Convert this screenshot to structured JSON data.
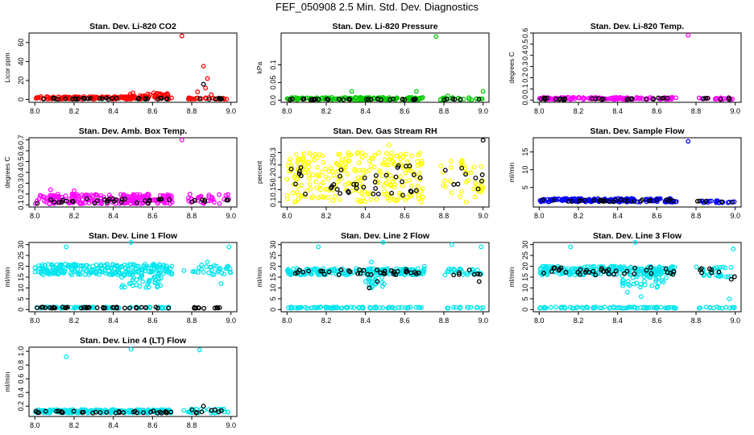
{
  "title": "FEF_050908  2.5 Min. Std. Dev. Diagnostics",
  "chart_data": [
    {
      "type": "scatter",
      "title": "Stan. Dev. Li-820 CO2",
      "ylabel": "Licor ppm",
      "xlim": [
        7.97,
        9.03
      ],
      "ylim": [
        -3,
        70
      ],
      "xticks": [
        8.0,
        8.2,
        8.4,
        8.6,
        8.8,
        9.0
      ],
      "yticks": [
        0,
        20,
        40,
        60
      ],
      "series": [
        {
          "name": "all",
          "color": "#ff0000",
          "bands": [
            {
              "x0": 8.0,
              "x1": 8.7,
              "y0": 0.2,
              "y1": 3,
              "n": 150
            },
            {
              "x0": 8.48,
              "x1": 8.68,
              "y0": 3,
              "y1": 7,
              "n": 25
            },
            {
              "x0": 8.78,
              "x1": 9.0,
              "y0": 0.2,
              "y1": 2,
              "n": 24
            }
          ],
          "points": [
            [
              8.75,
              67
            ],
            [
              8.86,
              35
            ],
            [
              8.88,
              22
            ],
            [
              8.87,
              12
            ],
            [
              8.9,
              5
            ],
            [
              8.83,
              8
            ]
          ]
        },
        {
          "name": "hourly",
          "color": "#000000",
          "bands": [
            {
              "x0": 8.0,
              "x1": 8.7,
              "y0": 0.2,
              "y1": 1.5,
              "n": 32
            },
            {
              "x0": 8.8,
              "x1": 9.0,
              "y0": 0.2,
              "y1": 1.5,
              "n": 8
            }
          ],
          "points": [
            [
              8.86,
              16
            ]
          ]
        }
      ]
    },
    {
      "type": "scatter",
      "title": "Stan. Dev. Li-820 Pressure",
      "ylabel": "kPa",
      "xlim": [
        7.97,
        9.03
      ],
      "ylim": [
        -0.006,
        0.19
      ],
      "xticks": [
        8.0,
        8.2,
        8.4,
        8.6,
        8.8,
        9.0
      ],
      "yticks": [
        0.0,
        0.05,
        0.1
      ],
      "series": [
        {
          "name": "all",
          "color": "#00cc00",
          "bands": [
            {
              "x0": 8.0,
              "x1": 8.7,
              "y0": 0.001,
              "y1": 0.008,
              "n": 150
            },
            {
              "x0": 8.78,
              "x1": 9.0,
              "y0": 0.001,
              "y1": 0.008,
              "n": 24
            }
          ],
          "points": [
            [
              8.76,
              0.18
            ],
            [
              8.33,
              0.025
            ],
            [
              8.66,
              0.025
            ],
            [
              9.0,
              0.025
            ],
            [
              8.82,
              0.012
            ]
          ]
        },
        {
          "name": "hourly",
          "color": "#000000",
          "bands": [
            {
              "x0": 8.0,
              "x1": 8.7,
              "y0": 0.001,
              "y1": 0.004,
              "n": 30
            },
            {
              "x0": 8.8,
              "x1": 9.0,
              "y0": 0.001,
              "y1": 0.004,
              "n": 6
            }
          ],
          "points": []
        }
      ]
    },
    {
      "type": "scatter",
      "title": "Stan. Dev. Li-820 Temp.",
      "ylabel": "degrees C",
      "xlim": [
        7.97,
        9.03
      ],
      "ylim": [
        -0.02,
        0.6
      ],
      "xticks": [
        8.0,
        8.2,
        8.4,
        8.6,
        8.8,
        9.0
      ],
      "yticks": [
        0.0,
        0.1,
        0.2,
        0.3,
        0.4,
        0.5,
        0.6
      ],
      "series": [
        {
          "name": "all",
          "color": "#ff00ff",
          "bands": [
            {
              "x0": 8.0,
              "x1": 8.7,
              "y0": 0.005,
              "y1": 0.025,
              "n": 140
            },
            {
              "x0": 8.8,
              "x1": 9.0,
              "y0": 0.005,
              "y1": 0.02,
              "n": 20
            }
          ],
          "points": [
            [
              8.76,
              0.58
            ]
          ]
        },
        {
          "name": "hourly",
          "color": "#000000",
          "bands": [
            {
              "x0": 8.0,
              "x1": 8.7,
              "y0": 0.005,
              "y1": 0.02,
              "n": 30
            },
            {
              "x0": 8.8,
              "x1": 9.0,
              "y0": 0.005,
              "y1": 0.02,
              "n": 6
            }
          ],
          "points": []
        }
      ]
    },
    {
      "type": "scatter",
      "title": "Stan. Dev. Amb. Box Temp.",
      "ylabel": "degrees C",
      "xlim": [
        7.97,
        9.03
      ],
      "ylim": [
        0.08,
        0.72
      ],
      "xticks": [
        8.0,
        8.2,
        8.4,
        8.6,
        8.8,
        9.0
      ],
      "yticks": [
        0.1,
        0.2,
        0.3,
        0.4,
        0.5,
        0.6,
        0.7
      ],
      "series": [
        {
          "name": "all",
          "color": "#ff00ff",
          "bands": [
            {
              "x0": 8.0,
              "x1": 8.7,
              "y0": 0.11,
              "y1": 0.2,
              "n": 220
            },
            {
              "x0": 8.78,
              "x1": 9.0,
              "y0": 0.11,
              "y1": 0.2,
              "n": 30
            }
          ],
          "points": [
            [
              8.75,
              0.7
            ],
            [
              8.08,
              0.24
            ],
            [
              8.2,
              0.23
            ]
          ]
        },
        {
          "name": "hourly",
          "color": "#000000",
          "bands": [
            {
              "x0": 8.0,
              "x1": 8.7,
              "y0": 0.11,
              "y1": 0.16,
              "n": 32
            },
            {
              "x0": 8.8,
              "x1": 9.0,
              "y0": 0.11,
              "y1": 0.15,
              "n": 7
            }
          ],
          "points": []
        }
      ]
    },
    {
      "type": "scatter",
      "title": "Stan. Dev. Gas Stream RH",
      "ylabel": "percent",
      "xlim": [
        7.97,
        9.03
      ],
      "ylim": [
        0.08,
        0.36
      ],
      "xticks": [
        8.0,
        8.2,
        8.4,
        8.6,
        8.8,
        9.0
      ],
      "yticks": [
        0.1,
        0.15,
        0.2,
        0.25,
        0.3
      ],
      "series": [
        {
          "name": "all",
          "color": "#ffff00",
          "bands": [
            {
              "x0": 8.0,
              "x1": 8.7,
              "y0": 0.1,
              "y1": 0.3,
              "n": 260
            },
            {
              "x0": 8.78,
              "x1": 9.0,
              "y0": 0.1,
              "y1": 0.27,
              "n": 40
            }
          ],
          "points": [
            [
              8.52,
              0.33
            ]
          ]
        },
        {
          "name": "hourly",
          "color": "#000000",
          "bands": [
            {
              "x0": 8.0,
              "x1": 8.7,
              "y0": 0.12,
              "y1": 0.26,
              "n": 40
            },
            {
              "x0": 8.8,
              "x1": 9.0,
              "y0": 0.12,
              "y1": 0.24,
              "n": 9
            }
          ],
          "points": [
            [
              9.0,
              0.35
            ]
          ]
        }
      ]
    },
    {
      "type": "scatter",
      "title": "Stan. Dev. Sample Flow",
      "ylabel": "ml/min",
      "xlim": [
        7.97,
        9.03
      ],
      "ylim": [
        -0.5,
        19
      ],
      "xticks": [
        8.0,
        8.2,
        8.4,
        8.6,
        8.8,
        9.0
      ],
      "yticks": [
        5,
        10,
        15
      ],
      "series": [
        {
          "name": "all",
          "color": "#0000ff",
          "bands": [
            {
              "x0": 8.0,
              "x1": 8.7,
              "y0": 0.9,
              "y1": 1.9,
              "n": 180
            },
            {
              "x0": 8.8,
              "x1": 9.0,
              "y0": 0.7,
              "y1": 1.3,
              "n": 20
            }
          ],
          "points": [
            [
              8.76,
              18
            ]
          ]
        },
        {
          "name": "hourly",
          "color": "#000000",
          "bands": [
            {
              "x0": 8.0,
              "x1": 8.7,
              "y0": 1.0,
              "y1": 1.6,
              "n": 30
            },
            {
              "x0": 8.8,
              "x1": 9.0,
              "y0": 0.8,
              "y1": 1.2,
              "n": 6
            }
          ],
          "points": []
        }
      ]
    },
    {
      "type": "scatter",
      "title": "Stan. Dev. Line 1 Flow",
      "ylabel": "ml/min",
      "xlim": [
        7.97,
        9.03
      ],
      "ylim": [
        -1,
        31
      ],
      "xticks": [
        8.0,
        8.2,
        8.4,
        8.6,
        8.8,
        9.0
      ],
      "yticks": [
        0,
        5,
        10,
        15,
        20,
        25,
        30
      ],
      "series": [
        {
          "name": "all",
          "color": "#00e5ee",
          "bands": [
            {
              "x0": 8.0,
              "x1": 8.7,
              "y0": 16,
              "y1": 21,
              "n": 230
            },
            {
              "x0": 8.43,
              "x1": 8.65,
              "y0": 10,
              "y1": 17,
              "n": 40
            },
            {
              "x0": 8.8,
              "x1": 9.0,
              "y0": 16,
              "y1": 21,
              "n": 30
            },
            {
              "x0": 8.0,
              "x1": 8.7,
              "y0": 0.6,
              "y1": 1.2,
              "n": 70
            }
          ],
          "points": [
            [
              8.16,
              29
            ],
            [
              8.49,
              31
            ],
            [
              8.76,
              18
            ],
            [
              8.99,
              29
            ],
            [
              8.88,
              22
            ],
            [
              8.95,
              12
            ]
          ]
        },
        {
          "name": "hourly",
          "color": "#000000",
          "bands": [
            {
              "x0": 8.0,
              "x1": 8.7,
              "y0": 0.6,
              "y1": 1.2,
              "n": 40
            },
            {
              "x0": 8.8,
              "x1": 9.0,
              "y0": 0.6,
              "y1": 1.2,
              "n": 10
            }
          ],
          "points": []
        }
      ]
    },
    {
      "type": "scatter",
      "title": "Stan. Dev. Line 2 Flow",
      "ylabel": "ml/min",
      "xlim": [
        7.97,
        9.03
      ],
      "ylim": [
        -1,
        31
      ],
      "xticks": [
        8.0,
        8.2,
        8.4,
        8.6,
        8.8,
        9.0
      ],
      "yticks": [
        0,
        5,
        10,
        15,
        20,
        25,
        30
      ],
      "series": [
        {
          "name": "all",
          "color": "#00e5ee",
          "bands": [
            {
              "x0": 8.0,
              "x1": 8.7,
              "y0": 16,
              "y1": 19,
              "n": 200
            },
            {
              "x0": 8.4,
              "x1": 8.5,
              "y0": 10,
              "y1": 16,
              "n": 20
            },
            {
              "x0": 8.8,
              "x1": 9.0,
              "y0": 16,
              "y1": 19,
              "n": 26
            },
            {
              "x0": 8.0,
              "x1": 8.7,
              "y0": 0.6,
              "y1": 1.2,
              "n": 80
            },
            {
              "x0": 8.8,
              "x1": 9.0,
              "y0": 0.6,
              "y1": 1.2,
              "n": 14
            }
          ],
          "points": [
            [
              8.16,
              29
            ],
            [
              8.49,
              31
            ],
            [
              8.99,
              29
            ],
            [
              8.84,
              30
            ],
            [
              8.43,
              22
            ],
            [
              8.7,
              20
            ]
          ]
        },
        {
          "name": "hourly",
          "color": "#000000",
          "bands": [
            {
              "x0": 8.02,
              "x1": 8.7,
              "y0": 16,
              "y1": 18.5,
              "n": 36
            },
            {
              "x0": 8.82,
              "x1": 9.0,
              "y0": 16,
              "y1": 18.5,
              "n": 7
            }
          ],
          "points": [
            [
              8.42,
              10
            ],
            [
              8.46,
              13
            ],
            [
              8.98,
              13
            ]
          ]
        }
      ]
    },
    {
      "type": "scatter",
      "title": "Stan. Dev. Line 3 Flow",
      "ylabel": "ml/min",
      "xlim": [
        7.97,
        9.03
      ],
      "ylim": [
        -1,
        31
      ],
      "xticks": [
        8.0,
        8.2,
        8.4,
        8.6,
        8.8,
        9.0
      ],
      "yticks": [
        0,
        5,
        10,
        15,
        20,
        25,
        30
      ],
      "series": [
        {
          "name": "all",
          "color": "#00e5ee",
          "bands": [
            {
              "x0": 8.0,
              "x1": 8.7,
              "y0": 16,
              "y1": 20,
              "n": 220
            },
            {
              "x0": 8.42,
              "x1": 8.65,
              "y0": 10,
              "y1": 17,
              "n": 40
            },
            {
              "x0": 8.8,
              "x1": 9.0,
              "y0": 15,
              "y1": 20,
              "n": 30
            },
            {
              "x0": 8.0,
              "x1": 8.7,
              "y0": 0.6,
              "y1": 1.2,
              "n": 80
            },
            {
              "x0": 8.8,
              "x1": 9.0,
              "y0": 0.6,
              "y1": 1.2,
              "n": 14
            }
          ],
          "points": [
            [
              8.16,
              29
            ],
            [
              8.49,
              31
            ],
            [
              8.99,
              28
            ],
            [
              8.45,
              8
            ],
            [
              8.52,
              6
            ],
            [
              8.97,
              5
            ]
          ]
        },
        {
          "name": "hourly",
          "color": "#000000",
          "bands": [
            {
              "x0": 8.02,
              "x1": 8.7,
              "y0": 16,
              "y1": 19.5,
              "n": 36
            },
            {
              "x0": 8.82,
              "x1": 9.0,
              "y0": 15,
              "y1": 19,
              "n": 8
            }
          ],
          "points": [
            [
              8.98,
              14
            ]
          ]
        }
      ]
    },
    {
      "type": "scatter",
      "title": "Stan. Dev. Line 4 (LT) Flow",
      "ylabel": "ml/min",
      "xlim": [
        7.97,
        9.03
      ],
      "ylim": [
        0.05,
        1.06
      ],
      "xticks": [
        8.0,
        8.2,
        8.4,
        8.6,
        8.8,
        9.0
      ],
      "yticks": [
        0.2,
        0.4,
        0.6,
        0.8,
        1.0
      ],
      "series": [
        {
          "name": "all",
          "color": "#00e5ee",
          "bands": [
            {
              "x0": 8.0,
              "x1": 8.7,
              "y0": 0.1,
              "y1": 0.15,
              "n": 220
            },
            {
              "x0": 8.78,
              "x1": 9.0,
              "y0": 0.1,
              "y1": 0.16,
              "n": 30
            }
          ],
          "points": [
            [
              8.16,
              0.92
            ],
            [
              8.49,
              1.03
            ],
            [
              8.84,
              1.02
            ],
            [
              8.76,
              0.14
            ]
          ]
        },
        {
          "name": "hourly",
          "color": "#000000",
          "bands": [
            {
              "x0": 8.0,
              "x1": 8.7,
              "y0": 0.1,
              "y1": 0.13,
              "n": 34
            },
            {
              "x0": 8.8,
              "x1": 9.0,
              "y0": 0.1,
              "y1": 0.15,
              "n": 8
            }
          ],
          "points": [
            [
              8.86,
              0.2
            ]
          ]
        }
      ]
    }
  ]
}
